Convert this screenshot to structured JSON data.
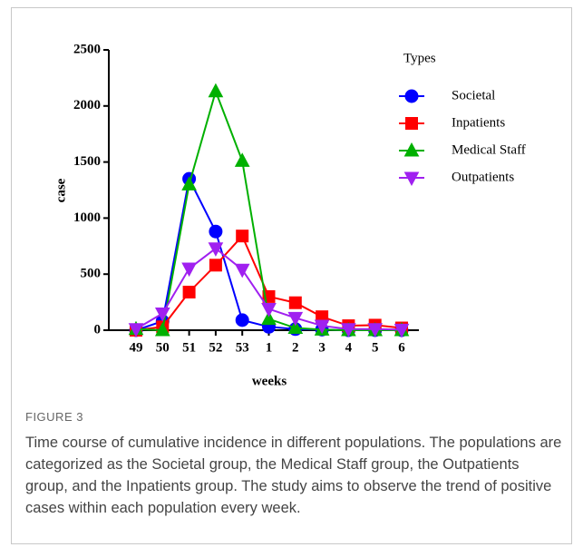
{
  "chart_data": {
    "type": "line",
    "x_label": "weeks",
    "y_label": "case",
    "categories": [
      "49",
      "50",
      "51",
      "52",
      "53",
      "1",
      "2",
      "3",
      "4",
      "5",
      "6"
    ],
    "ylim": [
      0,
      2500
    ],
    "yticks": [
      0,
      500,
      1000,
      1500,
      2000,
      2500
    ],
    "legend_title": "Types",
    "series": [
      {
        "name": "Societal",
        "color": "#0000ff",
        "marker": "circle",
        "values": [
          0,
          80,
          1350,
          880,
          90,
          30,
          10,
          5,
          0,
          0,
          0
        ]
      },
      {
        "name": "Inpatients",
        "color": "#ff0000",
        "marker": "square",
        "values": [
          0,
          30,
          340,
          580,
          840,
          300,
          245,
          120,
          40,
          45,
          20
        ]
      },
      {
        "name": "Medical Staff",
        "color": "#00b000",
        "marker": "triangle-up",
        "values": [
          10,
          0,
          1300,
          2130,
          1510,
          100,
          20,
          5,
          0,
          0,
          0
        ]
      },
      {
        "name": "Outpatients",
        "color": "#a020f0",
        "marker": "triangle-down",
        "values": [
          10,
          150,
          550,
          730,
          540,
          190,
          110,
          40,
          10,
          10,
          5
        ]
      }
    ]
  },
  "caption": {
    "label": "FIGURE 3",
    "text": "Time course of cumulative incidence in different populations. The populations are categorized as the Societal group, the Medical Staff group, the Outpatients group, and the Inpatients group. The study aims to observe the trend of positive cases within each population every week."
  }
}
